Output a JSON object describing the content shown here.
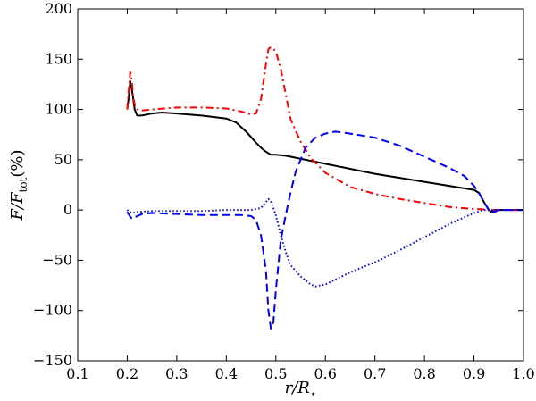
{
  "chart_data": {
    "type": "line",
    "xlabel": "r/R⋆",
    "ylabel": "F/Ftot(%)",
    "ylabel_parts": {
      "main": "F/F",
      "sub": "tot",
      "suffix": "(%)"
    },
    "xlabel_parts": {
      "main": "r/R",
      "sub": "⋆"
    },
    "xlim": [
      0.1,
      1.0
    ],
    "ylim": [
      -150,
      200
    ],
    "xticks": [
      0.1,
      0.2,
      0.3,
      0.4,
      0.5,
      0.6,
      0.7,
      0.8,
      0.9,
      1.0
    ],
    "xtick_labels": [
      "0.1",
      "0.2",
      "0.3",
      "0.4",
      "0.5",
      "0.6",
      "0.7",
      "0.8",
      "0.9",
      "1.0"
    ],
    "yticks": [
      -150,
      -100,
      -50,
      0,
      50,
      100,
      150,
      200
    ],
    "ytick_labels": [
      "−150",
      "−100",
      "−50",
      "0",
      "50",
      "100",
      "150",
      "200"
    ],
    "grid": false,
    "legend": "none",
    "series": [
      {
        "color": "#000000",
        "style": "solid",
        "x": [
          0.2,
          0.203,
          0.206,
          0.21,
          0.215,
          0.22,
          0.23,
          0.25,
          0.27,
          0.3,
          0.35,
          0.4,
          0.42,
          0.44,
          0.46,
          0.47,
          0.48,
          0.49,
          0.5,
          0.52,
          0.55,
          0.6,
          0.65,
          0.7,
          0.75,
          0.8,
          0.85,
          0.9,
          0.91,
          0.92,
          0.93,
          0.935,
          0.94,
          0.95,
          1.0
        ],
        "y": [
          100,
          112,
          128,
          118,
          100,
          94,
          94,
          96,
          97,
          96,
          94,
          91,
          87,
          78,
          67,
          62,
          58,
          55,
          55,
          54,
          51,
          46,
          41,
          36,
          32,
          28,
          24,
          20,
          17,
          8,
          0,
          -2,
          0,
          0,
          0
        ]
      },
      {
        "color": "#ff0000",
        "style": "dashdot",
        "x": [
          0.2,
          0.203,
          0.206,
          0.209,
          0.212,
          0.216,
          0.22,
          0.23,
          0.25,
          0.3,
          0.35,
          0.4,
          0.43,
          0.45,
          0.46,
          0.47,
          0.48,
          0.485,
          0.49,
          0.5,
          0.51,
          0.52,
          0.53,
          0.55,
          0.57,
          0.6,
          0.65,
          0.7,
          0.75,
          0.8,
          0.85,
          0.9,
          0.95,
          1.0
        ],
        "y": [
          100,
          120,
          137,
          130,
          112,
          103,
          100,
          99,
          100,
          102,
          102,
          101,
          98,
          95,
          96,
          110,
          145,
          160,
          162,
          158,
          140,
          115,
          90,
          68,
          52,
          37,
          23,
          16,
          11,
          7,
          3,
          1,
          0,
          0
        ]
      },
      {
        "color": "#0000ff",
        "style": "dashed",
        "x": [
          0.2,
          0.205,
          0.21,
          0.22,
          0.23,
          0.25,
          0.3,
          0.35,
          0.4,
          0.43,
          0.45,
          0.46,
          0.47,
          0.48,
          0.485,
          0.49,
          0.495,
          0.5,
          0.51,
          0.52,
          0.53,
          0.54,
          0.56,
          0.58,
          0.6,
          0.62,
          0.65,
          0.7,
          0.75,
          0.8,
          0.85,
          0.88,
          0.9,
          0.91,
          0.92,
          0.93,
          0.935,
          0.94,
          0.95,
          1.0
        ],
        "y": [
          -2,
          -6,
          -9,
          -6,
          -4,
          -3,
          -4,
          -5,
          -5,
          -5,
          -6,
          -10,
          -25,
          -60,
          -100,
          -118,
          -112,
          -80,
          -30,
          -5,
          18,
          38,
          62,
          72,
          76,
          78,
          76,
          72,
          64,
          53,
          42,
          34,
          24,
          17,
          8,
          0,
          -3,
          -2,
          0,
          0
        ]
      },
      {
        "color": "#0000ff",
        "style": "dotted",
        "x": [
          0.2,
          0.205,
          0.21,
          0.22,
          0.25,
          0.3,
          0.35,
          0.4,
          0.45,
          0.47,
          0.48,
          0.485,
          0.49,
          0.5,
          0.51,
          0.52,
          0.53,
          0.55,
          0.57,
          0.58,
          0.6,
          0.65,
          0.7,
          0.75,
          0.8,
          0.85,
          0.9,
          0.92,
          0.93,
          0.94,
          0.95,
          1.0
        ],
        "y": [
          0,
          -2,
          -3,
          -2,
          -1,
          -1,
          -1,
          0,
          0,
          2,
          8,
          11,
          9,
          -5,
          -25,
          -42,
          -55,
          -66,
          -74,
          -76,
          -74,
          -62,
          -52,
          -40,
          -27,
          -14,
          -3,
          0,
          0,
          0,
          0,
          0
        ]
      }
    ]
  }
}
